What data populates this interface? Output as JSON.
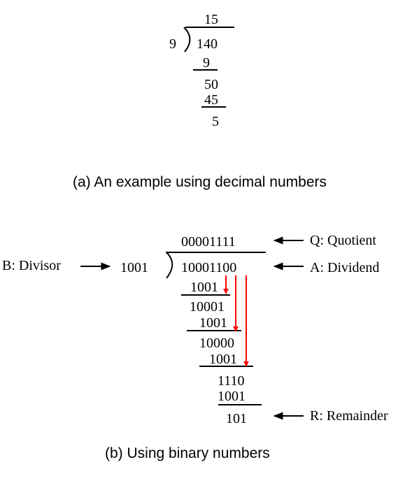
{
  "decimal": {
    "quotient": "15",
    "divisor": "9",
    "dividend": "140",
    "steps": [
      "9",
      "50",
      "45",
      "5"
    ],
    "caption": "(a) An example using decimal numbers"
  },
  "binary": {
    "quotient": "00001111",
    "divisor": "1001",
    "dividend": "10001100",
    "steps": [
      "1001",
      "10001",
      "1001",
      "10000",
      "1001",
      "1110",
      "1001",
      "101"
    ],
    "labels": {
      "quotient": "Q: Quotient",
      "dividend": "A: Dividend",
      "divisor": "B: Divisor",
      "remainder": "R: Remainder"
    },
    "caption": "(b) Using binary numbers"
  },
  "colors": {
    "bring_down_arrow": "#ff0000",
    "ink": "#000000"
  }
}
